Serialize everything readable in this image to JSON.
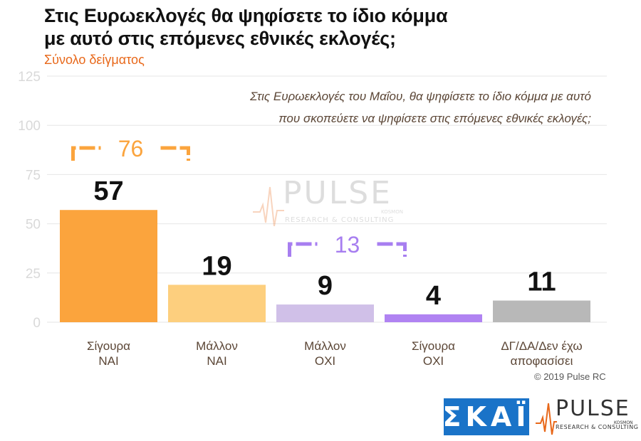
{
  "header": {
    "title_line1": "Στις Ευρωεκλογές θα ψηφίσετε το ίδιο κόμμα",
    "title_line2": "με αυτό στις επόμενες εθνικές εκλογές;",
    "subtitle": "Σύνολο δείγματος"
  },
  "question": {
    "line1": "Στις Ευρωεκλογές του Μαΐου, θα ψηφίσετε το ίδιο κόμμα με αυτό",
    "line2": "που σκοπεύετε να ψηφίσετε στις επόμενες εθνικές εκλογές;"
  },
  "footer": {
    "copyright": "© 2019 Pulse RC",
    "skai_logo": "ΣΚΑΪ",
    "pulse_logo": "PULSE",
    "pulse_sub": "RESEARCH & CONSULTING",
    "pulse_kosmon": "KOSMON"
  },
  "colors": {
    "yes_sure": "#fba43d",
    "yes_maybe": "#fdcf7e",
    "no_maybe": "#d0c0e8",
    "no_sure": "#b083f2",
    "dk": "#b8b8b8",
    "bracket_yes": "#fba43d",
    "bracket_no": "#a77ef0",
    "grid": "#e6e6e6",
    "axis_text": "#d9d9d9",
    "cat_text": "#5b4636"
  },
  "chart_data": {
    "type": "bar",
    "categories": [
      [
        "Σίγουρα",
        "ΝΑΙ"
      ],
      [
        "Μάλλον",
        "ΝΑΙ"
      ],
      [
        "Μάλλον",
        "ΟΧΙ"
      ],
      [
        "Σίγουρα",
        "ΟΧΙ"
      ],
      [
        "ΔΓ/ΔΑ/Δεν έχω",
        "αποφασίσει"
      ]
    ],
    "values": [
      57,
      19,
      9,
      4,
      11
    ],
    "data_labels": [
      "57",
      "19",
      "9",
      "4",
      "11"
    ],
    "ylim": [
      0,
      125
    ],
    "yticks": [
      0,
      25,
      50,
      75,
      100,
      125
    ],
    "grid": true,
    "annotations": [
      {
        "label": "76",
        "from": 0,
        "to": 1,
        "value": 76
      },
      {
        "label": "13",
        "from": 2,
        "to": 3,
        "value": 13
      }
    ]
  }
}
